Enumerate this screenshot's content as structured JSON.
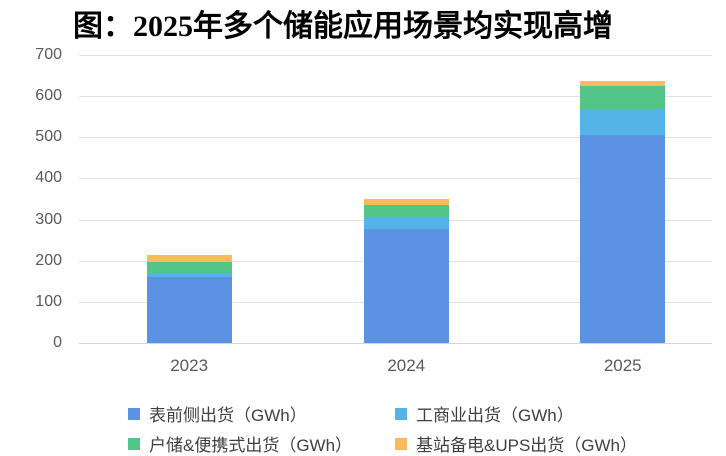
{
  "title": "图：2025年多个储能应用场景均实现高增",
  "chart_data": {
    "type": "bar",
    "stacked": true,
    "title": "图：2025年多个储能应用场景均实现高增",
    "categories": [
      "2023",
      "2024",
      "2025"
    ],
    "series": [
      {
        "name": "表前侧出货（GWh）",
        "color": "#5B92E2",
        "values": [
          160,
          278,
          505
        ]
      },
      {
        "name": "工商业出货（GWh）",
        "color": "#55B4E7",
        "values": [
          10,
          27,
          65
        ]
      },
      {
        "name": "户储&便携式出货（GWh）",
        "color": "#52C689",
        "values": [
          28,
          30,
          55
        ]
      },
      {
        "name": "基站备电&UPS出货（GWh）",
        "color": "#FBBA5B",
        "values": [
          15,
          15,
          13
        ]
      }
    ],
    "totals": [
      213,
      350,
      638
    ],
    "xlabel": "",
    "ylabel": "",
    "ylim": [
      0,
      700
    ],
    "ytick_step": 100,
    "yticks": [
      0,
      100,
      200,
      300,
      400,
      500,
      600,
      700
    ],
    "grid": true,
    "legend_position": "bottom",
    "colors": {
      "gridline": "#e3e3e3",
      "axis_line": "#d6d6d6",
      "tick_label": "#595959",
      "legend_text": "#404040",
      "background": "#ffffff",
      "title_text": "#000000"
    }
  }
}
